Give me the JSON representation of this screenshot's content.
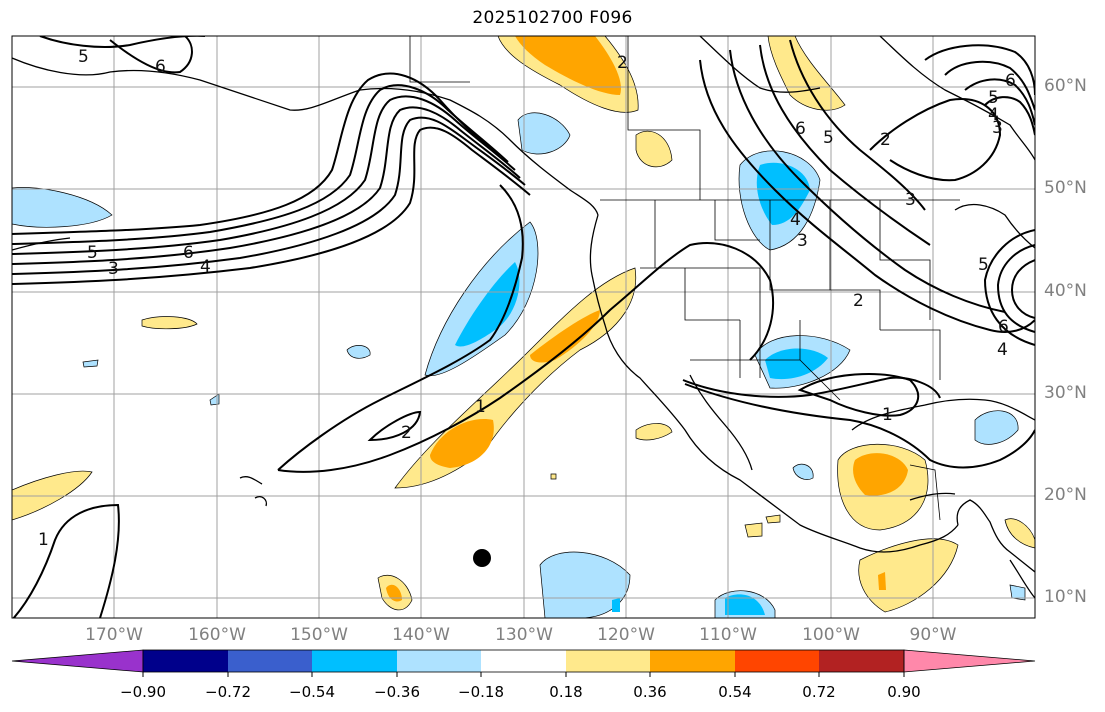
{
  "title": "2025102700 F096",
  "lat_labels": [
    "60°N",
    "50°N",
    "40°N",
    "30°N",
    "20°N",
    "10°N"
  ],
  "lon_labels": [
    "170°W",
    "160°W",
    "150°W",
    "140°W",
    "130°W",
    "120°W",
    "110°W",
    "100°W",
    "90°W"
  ],
  "contour_labels": [
    "6",
    "5",
    "4",
    "3",
    "2",
    "1"
  ],
  "colorbar": {
    "ticks": [
      "−0.90",
      "−0.72",
      "−0.54",
      "−0.36",
      "−0.18",
      "0.18",
      "0.36",
      "0.54",
      "0.72",
      "0.90"
    ],
    "colors": [
      "#9932cc",
      "#00008b",
      "#3a5fcd",
      "#00bfff",
      "#aee2ff",
      "#ffffff",
      "#ffe98c",
      "#ffa500",
      "#ff4500",
      "#b22222",
      "#ff88aa"
    ]
  },
  "chart_data": {
    "type": "map",
    "title": "2025102700 F096",
    "lon_range": [
      -180,
      -80
    ],
    "lat_range": [
      8,
      65
    ],
    "grid": true,
    "contour_levels": [
      1,
      2,
      3,
      4,
      5,
      6
    ],
    "colorbar_levels": [
      -0.9,
      -0.72,
      -0.54,
      -0.36,
      -0.18,
      0.18,
      0.36,
      0.54,
      0.72,
      0.9
    ],
    "marker": {
      "lon": -134.5,
      "lat": 14,
      "symbol": "filled-circle"
    }
  }
}
